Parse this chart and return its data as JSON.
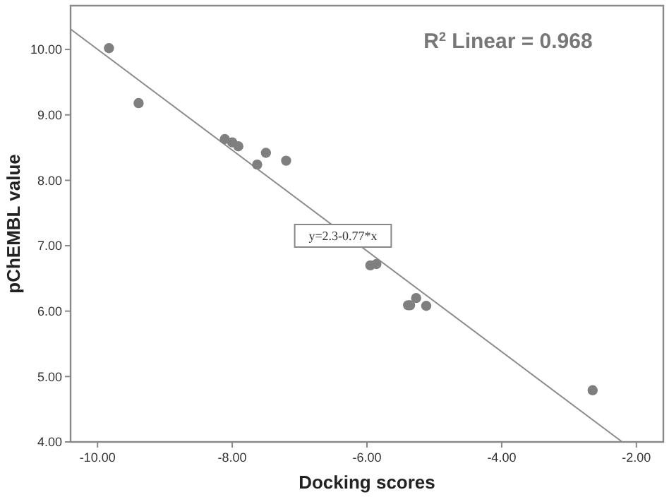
{
  "chart_data": {
    "type": "scatter",
    "xlabel": "Docking scores",
    "ylabel": "pChEMBL value",
    "xlim": [
      -10.4,
      -1.6
    ],
    "ylim": [
      4,
      10.67
    ],
    "xticks": [
      {
        "value": -10,
        "label": "-10.00"
      },
      {
        "value": -8,
        "label": "-8.00"
      },
      {
        "value": -6,
        "label": "-6.00"
      },
      {
        "value": -4,
        "label": "-4.00"
      },
      {
        "value": -2,
        "label": "-2.00"
      }
    ],
    "yticks": [
      {
        "value": 4,
        "label": "4.00"
      },
      {
        "value": 5,
        "label": "5.00"
      },
      {
        "value": 6,
        "label": "6.00"
      },
      {
        "value": 7,
        "label": "7.00"
      },
      {
        "value": 8,
        "label": "8.00"
      },
      {
        "value": 9,
        "label": "9.00"
      },
      {
        "value": 10,
        "label": "10.00"
      }
    ],
    "grid": false,
    "series": [
      {
        "color": "#7f7f7f",
        "marker": "circle",
        "x": [
          -9.83,
          -9.39,
          -8.11,
          -8.0,
          -7.91,
          -7.63,
          -7.5,
          -7.2,
          -5.95,
          -5.86,
          -5.39,
          -5.36,
          -5.27,
          -5.12,
          -2.65
        ],
        "values": [
          10.02,
          9.18,
          8.63,
          8.58,
          8.52,
          8.24,
          8.42,
          8.3,
          6.7,
          6.72,
          6.09,
          6.09,
          6.2,
          6.08,
          4.79
        ]
      },
      {
        "type": "line",
        "color": "#8c8c8c",
        "marker": "none",
        "x": [
          -10.4,
          -2.21
        ],
        "values": [
          10.31,
          4.0
        ]
      }
    ],
    "annotations": [
      "y=2.3-0.77*x",
      "R$^{2}$ Linear = 0.968"
    ]
  }
}
